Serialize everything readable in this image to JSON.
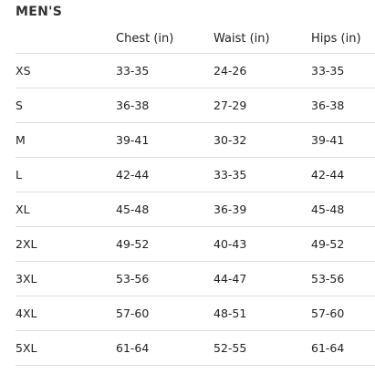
{
  "title": "MEN'S",
  "table": {
    "headers": [
      "",
      "Chest (in)",
      "Waist (in)",
      "Hips (in)"
    ],
    "rows": [
      [
        "XS",
        "33-35",
        "24-26",
        "33-35"
      ],
      [
        "S",
        "36-38",
        "27-29",
        "36-38"
      ],
      [
        "M",
        "39-41",
        "30-32",
        "39-41"
      ],
      [
        "L",
        "42-44",
        "33-35",
        "42-44"
      ],
      [
        "XL",
        "45-48",
        "36-39",
        "45-48"
      ],
      [
        "2XL",
        "49-52",
        "40-43",
        "49-52"
      ],
      [
        "3XL",
        "53-56",
        "44-47",
        "53-56"
      ],
      [
        "4XL",
        "57-60",
        "48-51",
        "57-60"
      ],
      [
        "5XL",
        "61-64",
        "52-55",
        "61-64"
      ]
    ]
  },
  "colors": {
    "text": "#222222",
    "title": "#333333",
    "divider": "#dddddd",
    "background": "#ffffff"
  }
}
